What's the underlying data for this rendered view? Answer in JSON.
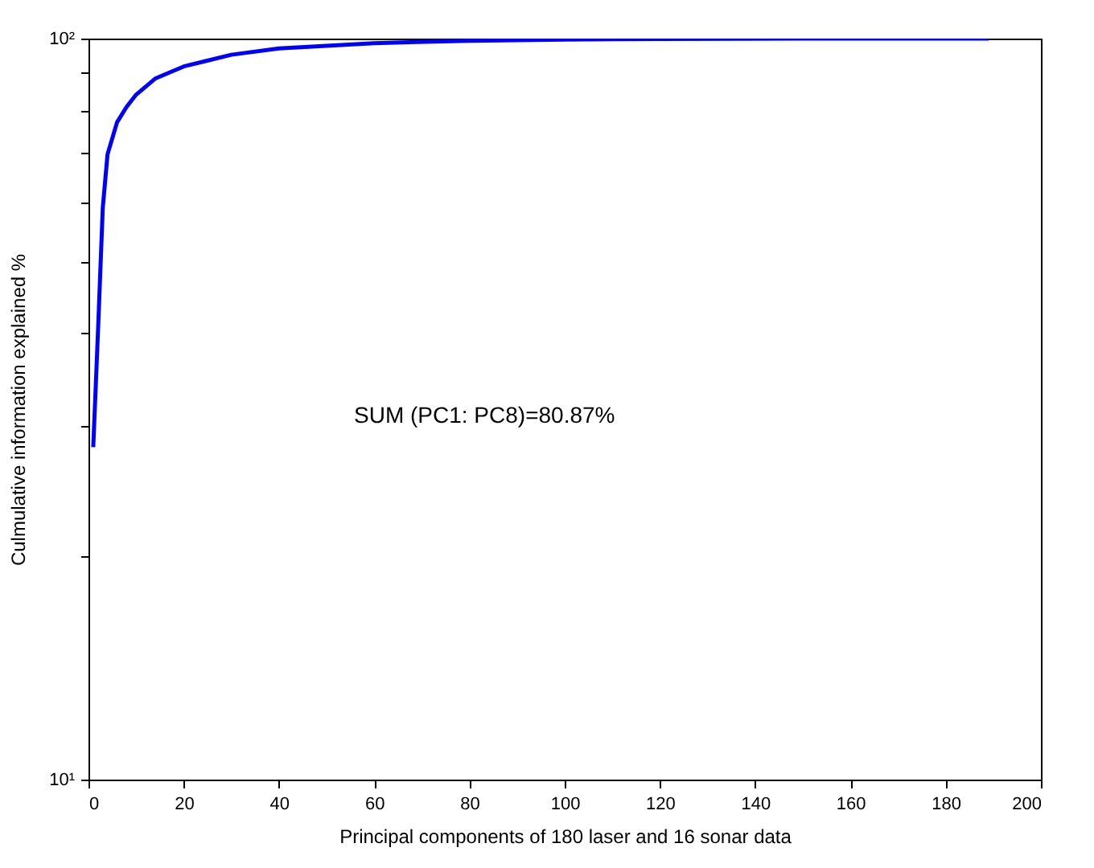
{
  "chart_data": {
    "type": "line",
    "xlabel": "Principal components of 180 laser and 16 sonar data",
    "ylabel": "Culmulative information explained %",
    "annotations": [
      "SUM (PC1: PC8)=80.87%"
    ],
    "x": [
      1,
      2,
      3,
      4,
      6,
      8,
      10,
      14,
      20,
      30,
      40,
      60,
      80,
      100,
      120,
      150,
      189
    ],
    "series": [
      {
        "color": "#0000ff",
        "values": [
          28.1,
          40.3,
          59.1,
          69.8,
          77.1,
          80.87,
          84.0,
          88.3,
          91.7,
          95.1,
          97.0,
          98.6,
          99.3,
          99.7,
          99.9,
          100,
          100
        ]
      }
    ],
    "xlim": [
      0,
      200
    ],
    "ylim": [
      10,
      100
    ],
    "log": true,
    "grid": false,
    "legend": false,
    "marker": "none",
    "line_style": "solid",
    "xticks": [
      0,
      20,
      40,
      60,
      80,
      100,
      120,
      140,
      160,
      180,
      200
    ],
    "yticks": [
      {
        "value": 10,
        "label": "10¹"
      },
      {
        "value": 20,
        "label": null
      },
      {
        "value": 30,
        "label": null
      },
      {
        "value": 40,
        "label": null
      },
      {
        "value": 50,
        "label": null
      },
      {
        "value": 60,
        "label": null
      },
      {
        "value": 70,
        "label": null
      },
      {
        "value": 80,
        "label": null
      },
      {
        "value": 90,
        "label": null
      },
      {
        "value": 100,
        "label": "10²"
      }
    ]
  }
}
